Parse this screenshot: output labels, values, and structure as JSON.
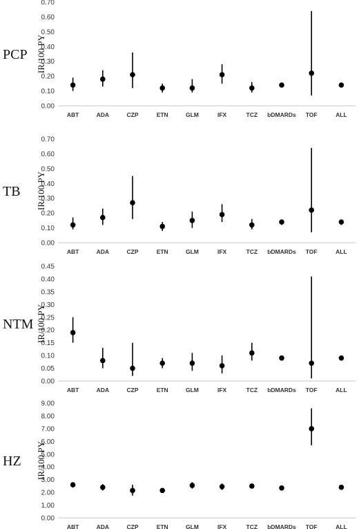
{
  "chart_data": [
    {
      "type": "scatter",
      "panel_label": "PCP",
      "ylabel": "IR/100 PY",
      "categories": [
        "ABT",
        "ADA",
        "CZP",
        "ETN",
        "GLM",
        "IFX",
        "TCZ",
        "bDMARDs",
        "TOF",
        "ALL"
      ],
      "ylim": [
        0,
        0.7
      ],
      "yticks": [
        "0.00",
        "0.10",
        "0.20",
        "0.30",
        "0.40",
        "0.50",
        "0.60",
        "0.70"
      ],
      "values": [
        0.14,
        0.18,
        0.21,
        0.12,
        0.12,
        0.21,
        0.12,
        0.14,
        0.22,
        0.14
      ],
      "lower": [
        0.1,
        0.13,
        0.12,
        0.09,
        0.09,
        0.15,
        0.09,
        0.13,
        0.07,
        0.13
      ],
      "upper": [
        0.19,
        0.24,
        0.36,
        0.15,
        0.18,
        0.28,
        0.16,
        0.15,
        0.64,
        0.15
      ],
      "grid": false
    },
    {
      "type": "scatter",
      "panel_label": "TB",
      "ylabel": "IR/100 PY",
      "categories": [
        "ABT",
        "ADA",
        "CZP",
        "ETN",
        "GLM",
        "IFX",
        "TCZ",
        "bDMARDs",
        "TOF",
        "ALL"
      ],
      "ylim": [
        0,
        0.7
      ],
      "yticks": [
        "0.00",
        "0.10",
        "0.20",
        "0.30",
        "0.40",
        "0.50",
        "0.60",
        "0.70"
      ],
      "values": [
        0.12,
        0.17,
        0.27,
        0.11,
        0.15,
        0.19,
        0.12,
        0.14,
        0.22,
        0.14
      ],
      "lower": [
        0.09,
        0.12,
        0.16,
        0.08,
        0.1,
        0.14,
        0.09,
        0.12,
        0.07,
        0.12
      ],
      "upper": [
        0.17,
        0.23,
        0.45,
        0.14,
        0.21,
        0.26,
        0.16,
        0.15,
        0.64,
        0.15
      ],
      "grid": false
    },
    {
      "type": "scatter",
      "panel_label": "NTM",
      "ylabel": "IR/100 PY",
      "categories": [
        "ABT",
        "ADA",
        "CZP",
        "ETN",
        "GLM",
        "IFX",
        "TCZ",
        "bDMARDs",
        "TOF",
        "ALL"
      ],
      "ylim": [
        0,
        0.45
      ],
      "yticks": [
        "0.00",
        "0.05",
        "0.10",
        "0.15",
        "0.20",
        "0.25",
        "0.30",
        "0.35",
        "0.40",
        "0.45"
      ],
      "values": [
        0.19,
        0.08,
        0.05,
        0.07,
        0.07,
        0.06,
        0.11,
        0.09,
        0.07,
        0.09
      ],
      "lower": [
        0.15,
        0.05,
        0.02,
        0.05,
        0.04,
        0.03,
        0.08,
        0.08,
        0.01,
        0.08
      ],
      "upper": [
        0.25,
        0.13,
        0.15,
        0.09,
        0.11,
        0.1,
        0.15,
        0.1,
        0.41,
        0.1
      ],
      "grid": false
    },
    {
      "type": "scatter",
      "panel_label": "HZ",
      "ylabel": "IR/100 PY",
      "categories": [
        "ABT",
        "ADA",
        "CZP",
        "ETN",
        "GLM",
        "IFX",
        "TCZ",
        "bDMARDs",
        "TOF",
        "ALL"
      ],
      "ylim": [
        0,
        9
      ],
      "yticks": [
        "0.00",
        "1.00",
        "2.00",
        "3.00",
        "4.00",
        "5.00",
        "6.00",
        "7.00",
        "8.00",
        "9.00"
      ],
      "values": [
        2.6,
        2.4,
        2.15,
        2.15,
        2.55,
        2.45,
        2.5,
        2.35,
        7.0,
        2.4
      ],
      "lower": [
        2.4,
        2.15,
        1.75,
        2.0,
        2.3,
        2.2,
        2.3,
        2.25,
        5.7,
        2.3
      ],
      "upper": [
        2.8,
        2.65,
        2.6,
        2.3,
        2.8,
        2.7,
        2.7,
        2.45,
        8.6,
        2.5
      ],
      "grid": false
    }
  ]
}
